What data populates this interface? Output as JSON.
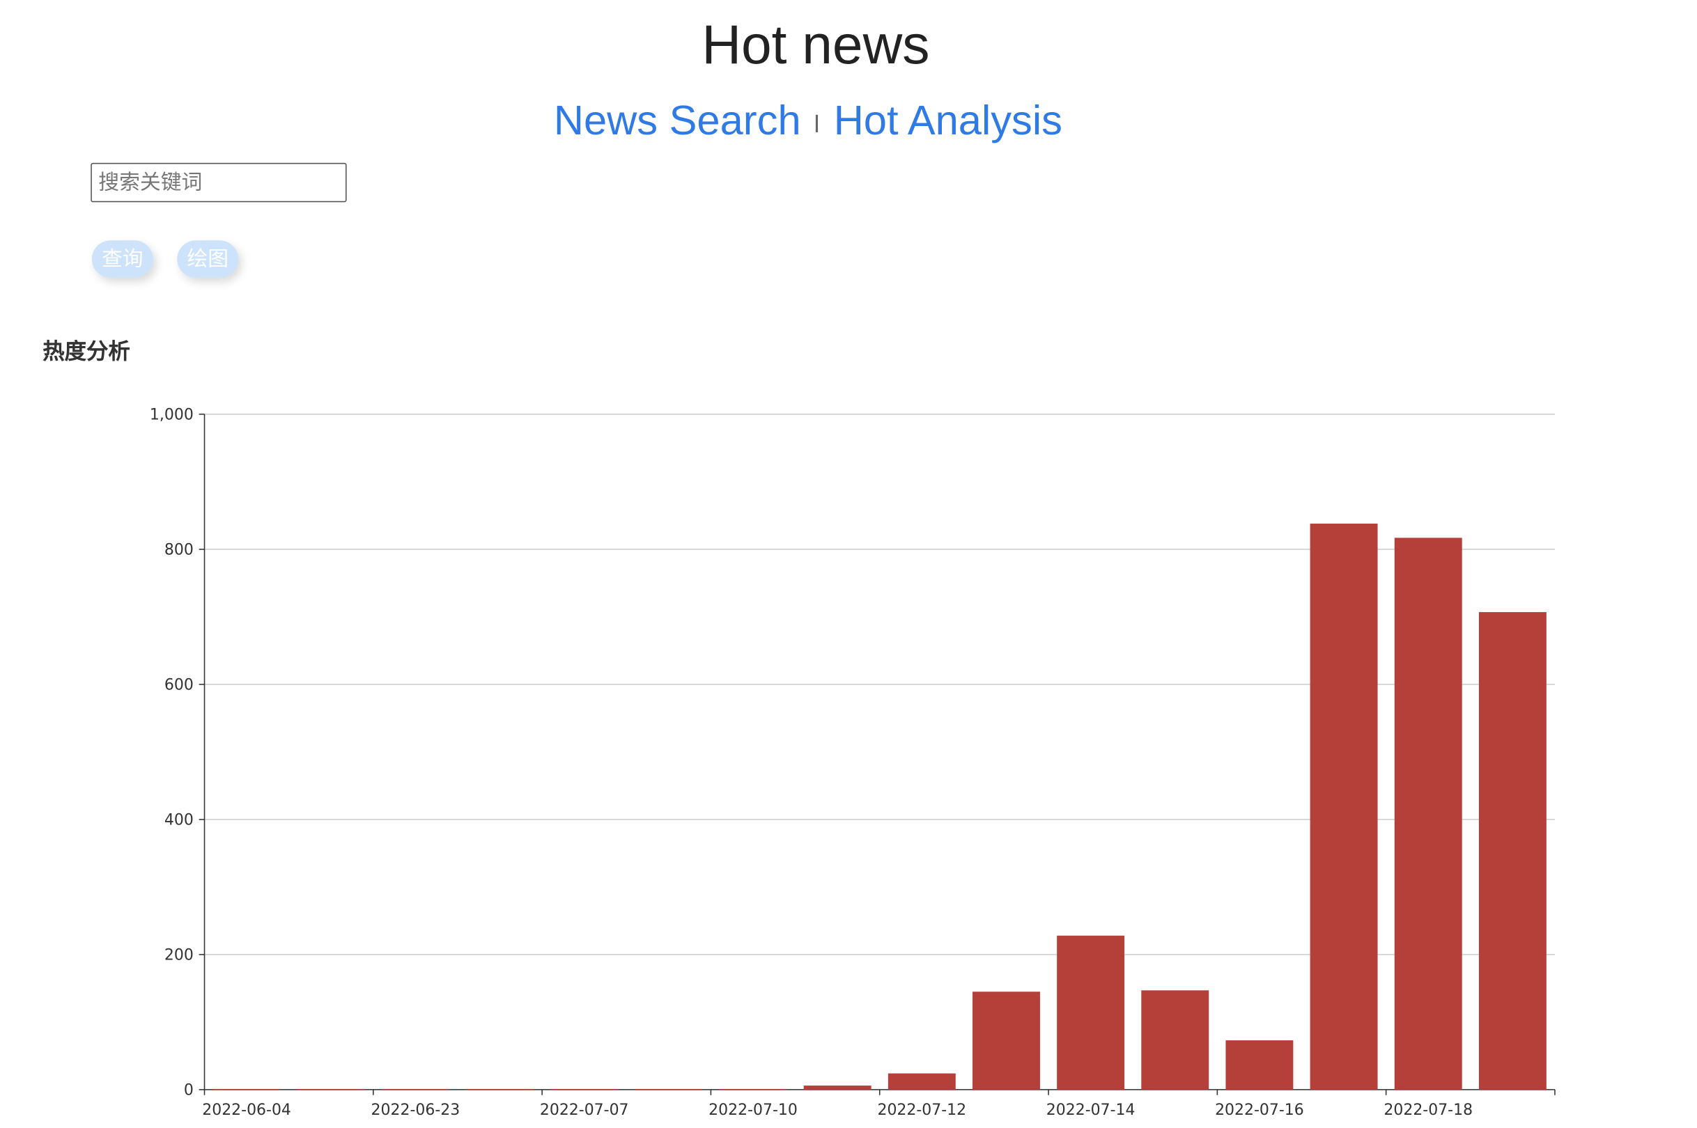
{
  "header": {
    "title": "Hot news"
  },
  "nav": [
    "News Search",
    "Hot Analysis"
  ],
  "search": {
    "placeholder": "搜索关键词"
  },
  "buttons": [
    "查询",
    "绘图"
  ],
  "section_title": "热度分析",
  "chart_data": {
    "type": "bar",
    "categories": [
      "2022-06-04",
      null,
      "2022-06-23",
      null,
      "2022-07-07",
      null,
      "2022-07-10",
      null,
      "2022-07-12",
      null,
      "2022-07-14",
      null,
      "2022-07-16",
      null,
      "2022-07-18",
      null
    ],
    "values": [
      1,
      1,
      1,
      1,
      1,
      1,
      1,
      6,
      24,
      145,
      228,
      147,
      73,
      838,
      817,
      707
    ],
    "color": "#b5403a",
    "ylim": [
      0,
      1000
    ],
    "yticks": [
      0,
      200,
      400,
      600,
      800,
      {
        "value": 1000,
        "label": "1,000"
      }
    ],
    "grid": true
  }
}
